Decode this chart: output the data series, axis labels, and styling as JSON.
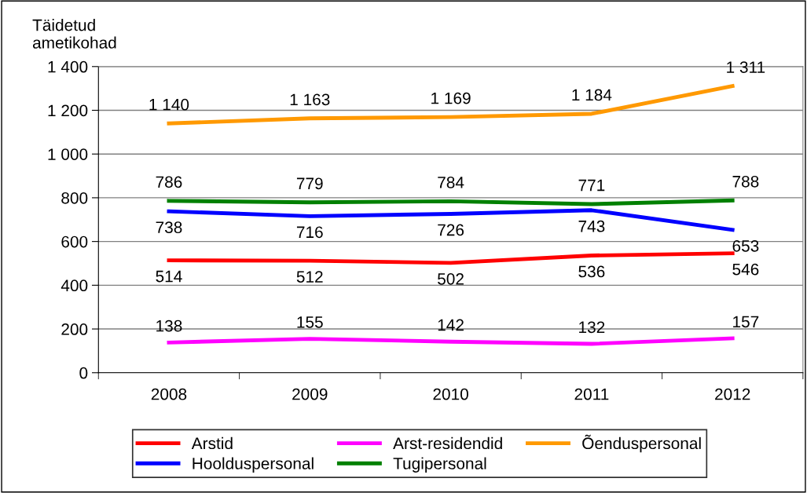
{
  "chart_data": {
    "type": "line",
    "ylabel": "Täidetud ametikohad",
    "categories": [
      "2008",
      "2009",
      "2010",
      "2011",
      "2012"
    ],
    "series": [
      {
        "name": "Arstid",
        "color": "#ff0000",
        "values": [
          514,
          512,
          502,
          536,
          546
        ],
        "value_labels": [
          "514",
          "512",
          "502",
          "536",
          "546"
        ]
      },
      {
        "name": "Arst-residendid",
        "color": "#ff00ff",
        "values": [
          138,
          155,
          142,
          132,
          157
        ],
        "value_labels": [
          "138",
          "155",
          "142",
          "132",
          "157"
        ]
      },
      {
        "name": "Õenduspersonal",
        "color": "#ff9900",
        "values": [
          1140,
          1163,
          1169,
          1184,
          1311
        ],
        "value_labels": [
          "1 140",
          "1 163",
          "1 169",
          "1 184",
          "1 311"
        ]
      },
      {
        "name": "Hoolduspersonal",
        "color": "#0000ff",
        "values": [
          738,
          716,
          726,
          743,
          653
        ],
        "value_labels": [
          "738",
          "716",
          "726",
          "743",
          "653"
        ]
      },
      {
        "name": "Tugipersonal",
        "color": "#008000",
        "values": [
          786,
          779,
          784,
          771,
          788
        ],
        "value_labels": [
          "786",
          "779",
          "784",
          "771",
          "788"
        ]
      }
    ],
    "ylim": [
      0,
      1400
    ],
    "yticks": [
      0,
      200,
      400,
      600,
      800,
      {
        "value": 1000,
        "label": "1 000"
      },
      {
        "value": 1200,
        "label": "1 200"
      },
      {
        "value": 1400,
        "label": "1 400"
      }
    ],
    "grid": "y",
    "legend": "bottom",
    "marker": "none",
    "line_style": "solid"
  }
}
